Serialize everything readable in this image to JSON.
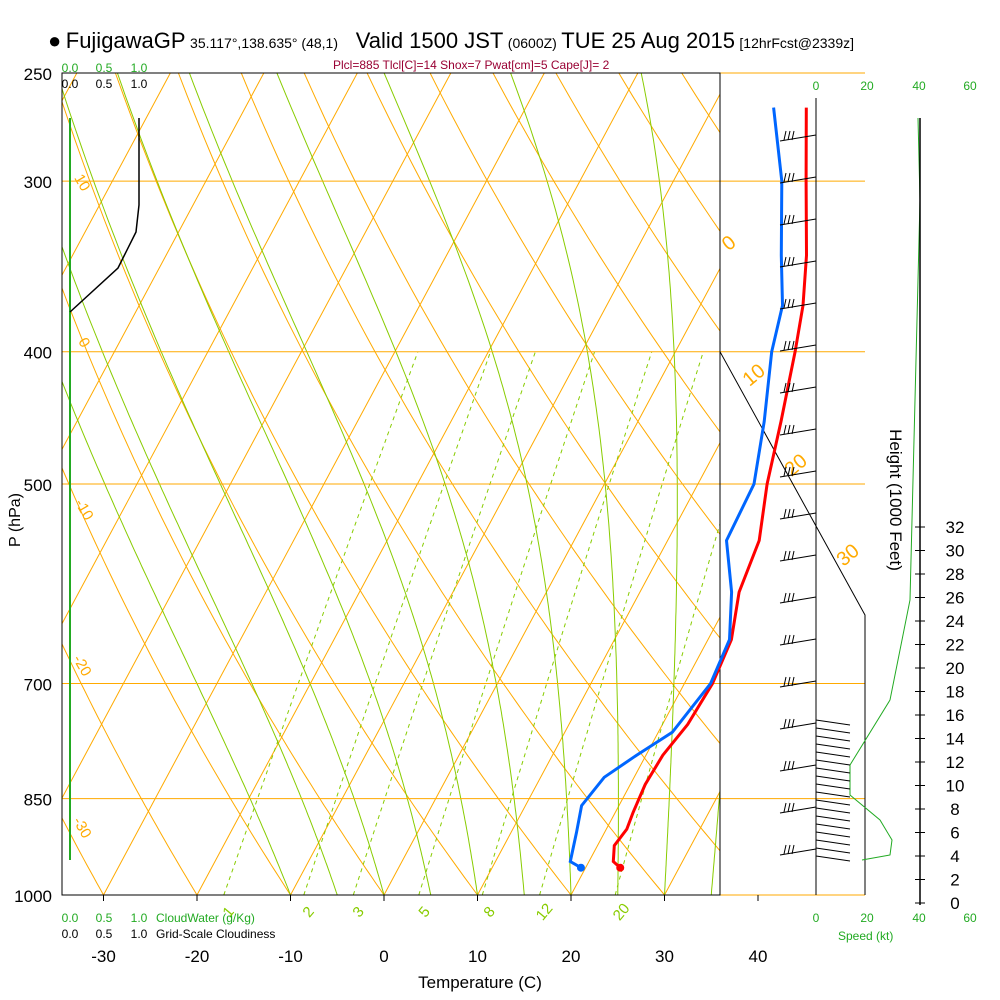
{
  "header": {
    "station": "FujigawaGP",
    "coords": "35.117°,138.635° (48,1)",
    "valid_prefix": "Valid 1500 JST",
    "utc": "(0600Z)",
    "date": "TUE 25 Aug 2015",
    "fcst": "[12hrFcst@2339z]",
    "params": "Plcl=885 Tlcl[C]=14 Shox=7 Pwat[cm]=5 Cape[J]= 2"
  },
  "colors": {
    "temperature": "#ff0000",
    "dewpoint": "#0066ff",
    "isobar": "#ffaa00",
    "dry_adiabat": "#ffaa00",
    "moist_adiabat": "#88cc00",
    "mixing_ratio": "#88cc00",
    "cloud": "#22aa22",
    "axis": "#000000"
  },
  "chart_data": {
    "type": "line",
    "title": "Skew-T log-P sounding",
    "xlabel": "Temperature (C)",
    "ylabel": "P (hPa)",
    "y2label": "Height (1000 Feet)",
    "x_ticks": [
      -30,
      -20,
      -10,
      0,
      10,
      20,
      30,
      40
    ],
    "pressure_levels": [
      250,
      300,
      400,
      500,
      700,
      850,
      1000
    ],
    "height_ticks": [
      0,
      2,
      4,
      6,
      8,
      10,
      12,
      14,
      16,
      18,
      20,
      22,
      24,
      26,
      28,
      30,
      32
    ],
    "mixing_ratio_labels": [
      "1",
      "2",
      "3",
      "5",
      "8",
      "12",
      "20"
    ],
    "moist_adiabat_labels": [
      "0",
      "10",
      "20",
      "30"
    ],
    "dry_adiabat_labels": [
      "10",
      "0",
      "-10",
      "-20",
      "-30"
    ],
    "cloud_scale": {
      "top_green": [
        "0.0",
        "0.5",
        "1.0"
      ],
      "top_black": [
        "0.0",
        "0.5",
        "1.0"
      ],
      "bottom_green": [
        "0.0",
        "0.5",
        "1.0"
      ],
      "bottom_black": [
        "0.0",
        "0.5",
        "1.0"
      ],
      "cloudwater_label": "CloudWater (g/Kg)",
      "cloudiness_label": "Grid-Scale Cloudiness"
    },
    "wind_speed_scale": {
      "top": [
        "0",
        "20",
        "40",
        "60"
      ],
      "bottom": [
        "0",
        "20",
        "40",
        "60"
      ],
      "label": "Speed (kt)"
    },
    "temperature": [
      {
        "p": 955,
        "t": 23.7
      },
      {
        "p": 945,
        "t": 22.6
      },
      {
        "p": 920,
        "t": 21.8
      },
      {
        "p": 895,
        "t": 22.2
      },
      {
        "p": 870,
        "t": 21.9
      },
      {
        "p": 830,
        "t": 21.6
      },
      {
        "p": 790,
        "t": 21.8
      },
      {
        "p": 750,
        "t": 22.7
      },
      {
        "p": 700,
        "t": 23.0
      },
      {
        "p": 650,
        "t": 22.5
      },
      {
        "p": 600,
        "t": 20.6
      },
      {
        "p": 550,
        "t": 19.8
      },
      {
        "p": 500,
        "t": 17.4
      },
      {
        "p": 450,
        "t": 15.3
      },
      {
        "p": 400,
        "t": 12.8
      },
      {
        "p": 370,
        "t": 11.0
      },
      {
        "p": 340,
        "t": 8.5
      },
      {
        "p": 300,
        "t": 4.2
      },
      {
        "p": 265,
        "t": 0.0
      }
    ],
    "dewpoint": [
      {
        "p": 955,
        "t": 19.5
      },
      {
        "p": 945,
        "t": 18.0
      },
      {
        "p": 900,
        "t": 17.0
      },
      {
        "p": 860,
        "t": 16.0
      },
      {
        "p": 820,
        "t": 16.8
      },
      {
        "p": 790,
        "t": 19.0
      },
      {
        "p": 760,
        "t": 21.5
      },
      {
        "p": 700,
        "t": 22.8
      },
      {
        "p": 650,
        "t": 22.3
      },
      {
        "p": 600,
        "t": 19.8
      },
      {
        "p": 550,
        "t": 16.3
      },
      {
        "p": 500,
        "t": 16.0
      },
      {
        "p": 450,
        "t": 13.5
      },
      {
        "p": 400,
        "t": 10.3
      },
      {
        "p": 370,
        "t": 8.8
      },
      {
        "p": 340,
        "t": 5.8
      },
      {
        "p": 300,
        "t": 1.6
      },
      {
        "p": 265,
        "t": -3.5
      }
    ],
    "wind_barbs_count": 18,
    "speed_profile_kt": [
      14,
      13,
      12,
      12,
      10,
      6,
      3,
      2,
      2,
      1,
      1,
      1,
      0,
      0
    ]
  }
}
